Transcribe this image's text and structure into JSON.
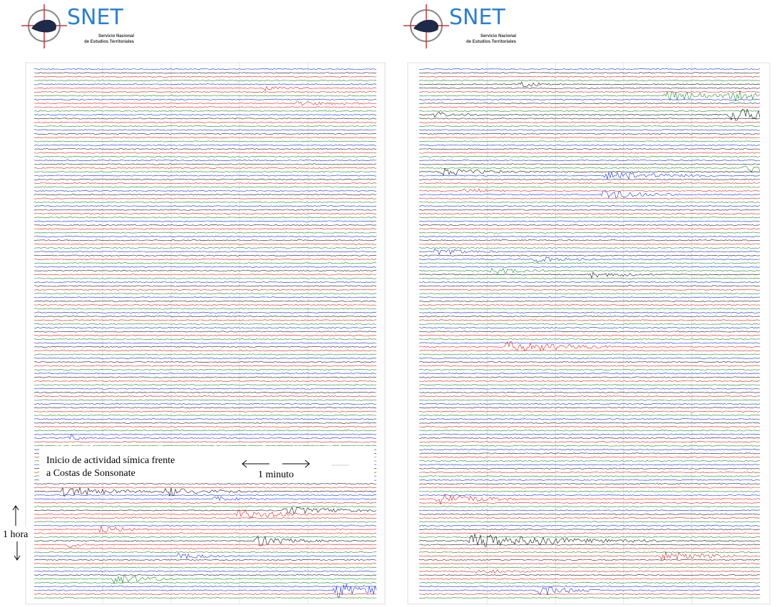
{
  "logos": [
    {
      "name": "SNET",
      "line_1": "Servicio Nacional",
      "line_2": "de Estudios Territoriales"
    },
    {
      "name": "SNET",
      "line_1": "Servicio Nacional",
      "line_2": "de Estudios Territoriales"
    }
  ],
  "annotations": {
    "event_line_1": "Inicio de actividad símica frente",
    "event_line_2": "a Costas de Sonsonate",
    "minute": "1 minuto",
    "hour": "1 hora"
  }
}
